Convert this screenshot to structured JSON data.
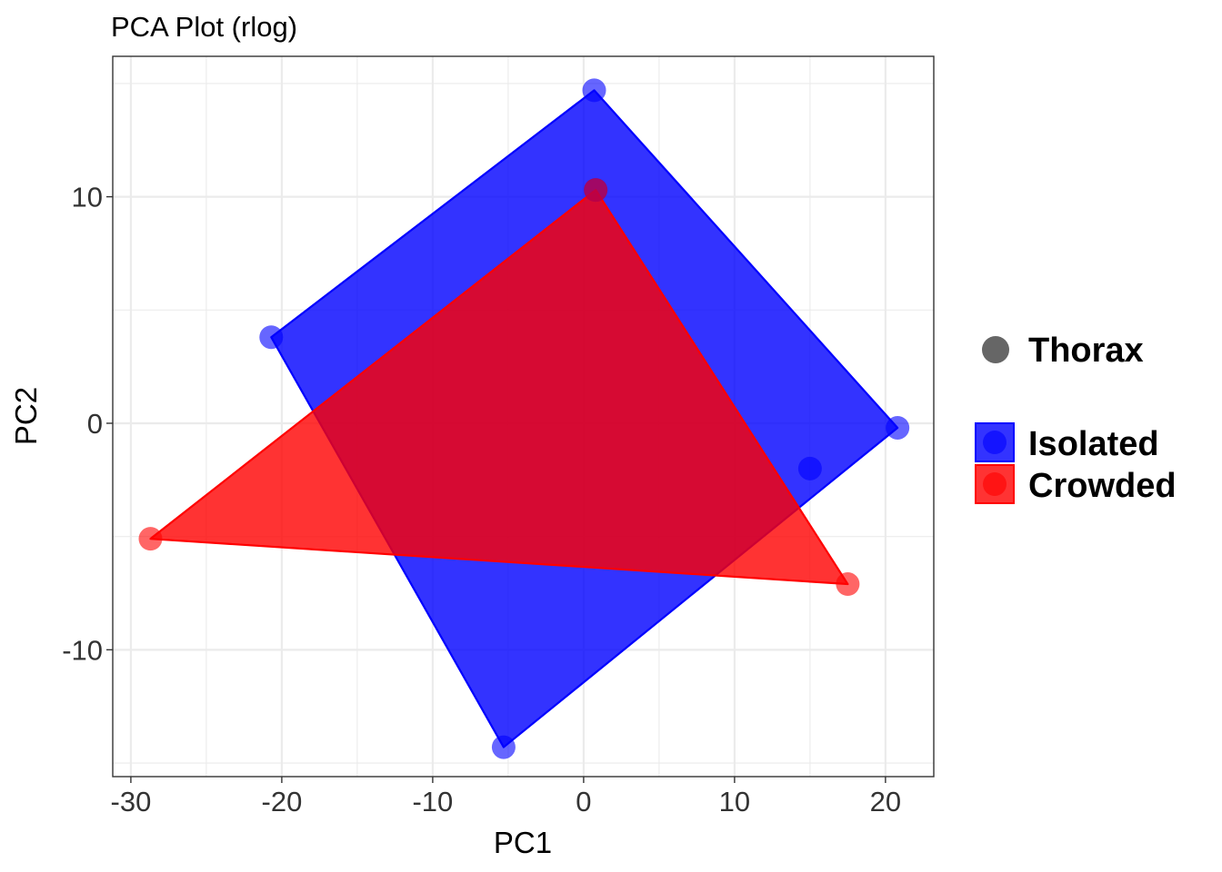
{
  "chart_data": {
    "type": "scatter",
    "title": "PCA Plot (rlog)",
    "xlabel": "PC1",
    "ylabel": "PC2",
    "xlim": [
      -31.2,
      23.2
    ],
    "ylim": [
      -15.6,
      16.2
    ],
    "x_ticks": [
      -30,
      -20,
      -10,
      0,
      10,
      20
    ],
    "x_tick_labels": [
      "-30",
      "-20",
      "-10",
      "0",
      "10",
      "20"
    ],
    "y_ticks": [
      -10,
      0,
      10
    ],
    "y_tick_labels": [
      "-10",
      "0",
      "10"
    ],
    "grid": true,
    "legend_position": "right",
    "shape_legend": {
      "label": "Thorax",
      "color": "#666666"
    },
    "series": [
      {
        "name": "Isolated",
        "color": "#0000ff",
        "points": [
          {
            "x": 0.7,
            "y": 14.7
          },
          {
            "x": 0.8,
            "y": 10.3
          },
          {
            "x": -20.7,
            "y": 3.8
          },
          {
            "x": 20.8,
            "y": -0.2
          },
          {
            "x": 15.0,
            "y": -2.0
          },
          {
            "x": -5.3,
            "y": -14.3
          }
        ],
        "hull": [
          {
            "x": 0.7,
            "y": 14.7
          },
          {
            "x": 20.8,
            "y": -0.2
          },
          {
            "x": -5.3,
            "y": -14.3
          },
          {
            "x": -20.7,
            "y": 3.8
          }
        ]
      },
      {
        "name": "Crowded",
        "color": "#ff0000",
        "points": [
          {
            "x": -28.7,
            "y": -5.1
          },
          {
            "x": 17.5,
            "y": -7.1
          },
          {
            "x": 0.8,
            "y": 10.3
          }
        ],
        "hull": [
          {
            "x": 0.8,
            "y": 10.3
          },
          {
            "x": 17.5,
            "y": -7.1
          },
          {
            "x": -28.7,
            "y": -5.1
          }
        ]
      }
    ]
  }
}
